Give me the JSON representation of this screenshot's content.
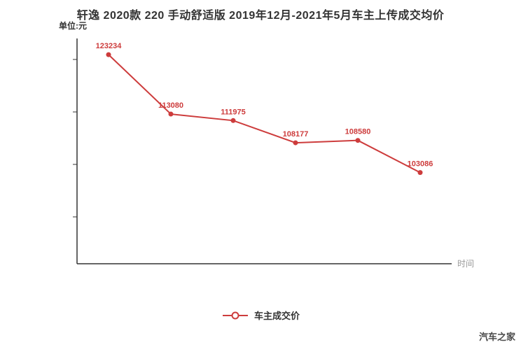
{
  "title": "轩逸 2020款 220 手动舒适版 2019年12月-2021年5月车主上传成交均价",
  "unit_label": "单位:元",
  "x_axis_label": "时间",
  "legend": {
    "label": "车主成交价"
  },
  "watermark": "汽车之家",
  "colors": {
    "line": "#cd3c3c",
    "axis": "#333333",
    "title": "#333333",
    "muted": "#9a9a9a"
  },
  "chart_data": {
    "type": "line",
    "title": "轩逸 2020款 220 手动舒适版 2019年12月-2021年5月车主上传成交均价",
    "xlabel": "时间",
    "ylabel": "单位:元",
    "categories": [
      "",
      "",
      "",
      "",
      "",
      ""
    ],
    "x_tick_labels_visible": false,
    "series": [
      {
        "name": "车主成交价",
        "values": [
          123234,
          113080,
          111975,
          108177,
          108580,
          103086
        ]
      }
    ],
    "point_labels": [
      "123234",
      "113080",
      "111975",
      "108177",
      "108580",
      "103086"
    ],
    "ylim": [
      87500,
      126000
    ],
    "grid": false,
    "legend_position": "bottom"
  }
}
